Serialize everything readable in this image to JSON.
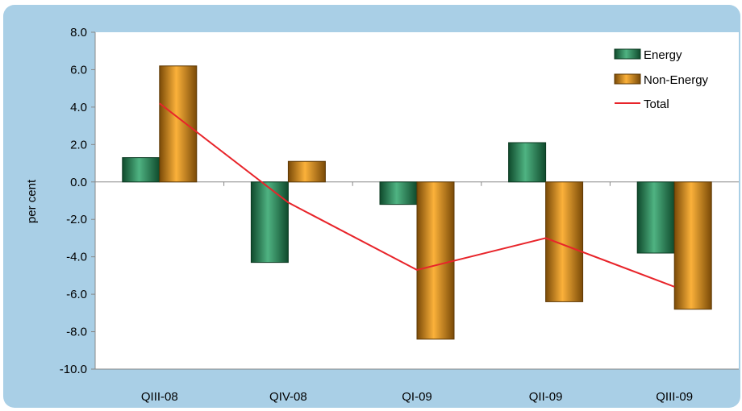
{
  "chart_data": {
    "type": "bar",
    "title": "",
    "xlabel": "",
    "ylabel": "per cent",
    "ylim": [
      -10,
      8
    ],
    "yticks": [
      "8.0",
      "6.0",
      "4.0",
      "2.0",
      "0.0",
      "-2.0",
      "-4.0",
      "-6.0",
      "-8.0",
      "-10.0"
    ],
    "categories": [
      "QIII-08",
      "QIV-08",
      "QI-09",
      "QII-09",
      "QIII-09"
    ],
    "series": [
      {
        "name": "Energy",
        "type": "bar",
        "color": "#2e8b57",
        "values": [
          1.3,
          -4.3,
          -1.2,
          2.1,
          -3.8
        ]
      },
      {
        "name": "Non-Energy",
        "type": "bar",
        "color": "#f5a21c",
        "values": [
          6.2,
          1.1,
          -8.4,
          -6.4,
          -6.8
        ]
      },
      {
        "name": "Total",
        "type": "line",
        "color": "#e8242a",
        "values": [
          4.2,
          -1.1,
          -4.7,
          -3.0,
          -5.6
        ]
      }
    ],
    "legend": "top-right",
    "grid": false
  }
}
